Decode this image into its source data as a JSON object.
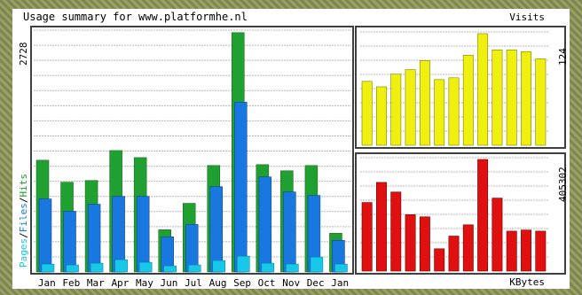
{
  "title": "Usage summary for www.platformhe.nl",
  "colors": {
    "hits": "#20a030",
    "files": "#1878e0",
    "pages": "#18c8e8",
    "visits": "#f0f010",
    "kbytes": "#e01010",
    "grid": "#b8b8b8",
    "border": "#404040"
  },
  "chart_data": [
    {
      "type": "bar",
      "categories": [
        "Jan",
        "Feb",
        "Mar",
        "Apr",
        "May",
        "Jun",
        "Jul",
        "Aug",
        "Sep",
        "Oct",
        "Nov",
        "Dec",
        "Jan"
      ],
      "ylabel_parts": [
        "Pages",
        "Files",
        "Hits"
      ],
      "ymax_label": "2728",
      "ylim": [
        0,
        2728
      ],
      "series": [
        {
          "name": "Hits",
          "values": [
            1270,
            1020,
            1040,
            1380,
            1300,
            480,
            780,
            1210,
            2720,
            1220,
            1150,
            1210,
            440
          ]
        },
        {
          "name": "Files",
          "values": [
            830,
            690,
            770,
            860,
            860,
            400,
            540,
            970,
            1930,
            1080,
            910,
            870,
            360
          ]
        },
        {
          "name": "Pages",
          "values": [
            90,
            80,
            100,
            140,
            110,
            70,
            80,
            130,
            180,
            100,
            90,
            170,
            90
          ]
        }
      ],
      "grid": true
    },
    {
      "type": "bar",
      "legend": "Visits",
      "ymax_label": "124",
      "ylim": [
        0,
        124
      ],
      "values": [
        71,
        65,
        79,
        84,
        94,
        73,
        75,
        100,
        124,
        106,
        106,
        104,
        96
      ]
    },
    {
      "type": "bar",
      "legend": "KBytes",
      "ymax_label": "405302",
      "ylim": [
        0,
        405302
      ],
      "values": [
        249000,
        322000,
        287000,
        205000,
        197000,
        81000,
        127000,
        168000,
        405302,
        265000,
        145000,
        149000,
        145000
      ]
    }
  ]
}
